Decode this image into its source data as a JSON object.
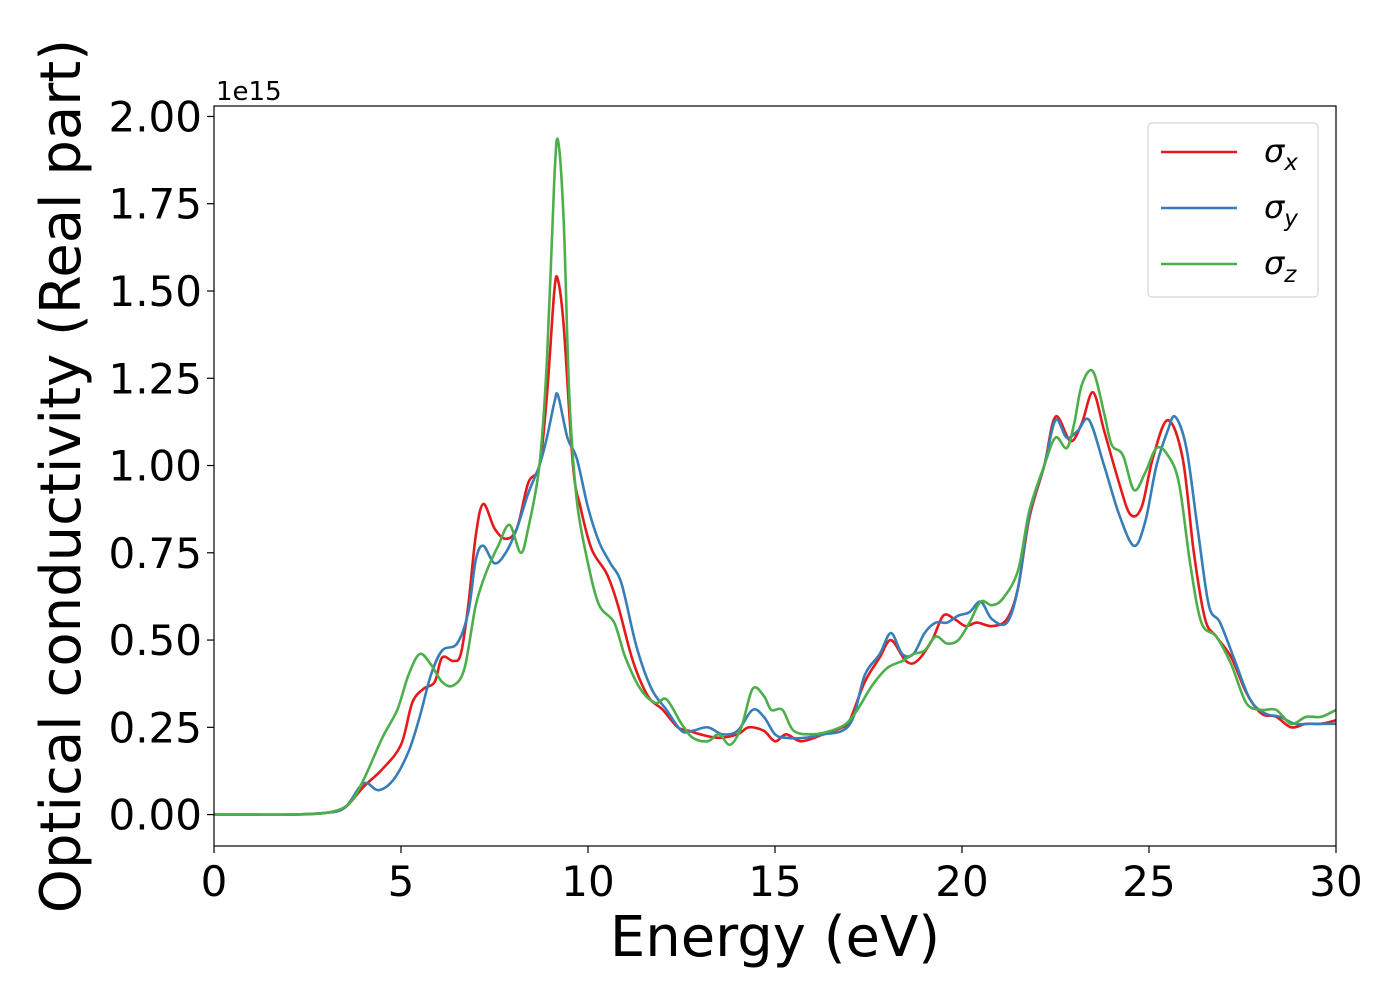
{
  "chart_data": {
    "type": "line",
    "xlabel": "Energy (eV)",
    "ylabel": "Optical conductivity (Real part)",
    "y_offset_label": "1e15",
    "xlim": [
      0,
      30
    ],
    "ylim": [
      -0.09,
      2.03
    ],
    "x_ticks": [
      0,
      5,
      10,
      15,
      20,
      25,
      30
    ],
    "x_tick_labels": [
      "0",
      "5",
      "10",
      "15",
      "20",
      "25",
      "30"
    ],
    "y_ticks": [
      0.0,
      0.25,
      0.5,
      0.75,
      1.0,
      1.25,
      1.5,
      1.75,
      2.0
    ],
    "y_tick_labels": [
      "0.00",
      "0.25",
      "0.50",
      "0.75",
      "1.00",
      "1.25",
      "1.50",
      "1.75",
      "2.00"
    ],
    "grid": false,
    "legend_position": "top-right",
    "series": [
      {
        "name": "σx",
        "legend_base": "σ",
        "legend_sub": "x",
        "color": "#e41a1c",
        "points": [
          [
            0,
            0
          ],
          [
            1,
            0
          ],
          [
            2,
            0
          ],
          [
            3,
            0.005
          ],
          [
            3.5,
            0.02
          ],
          [
            4,
            0.08
          ],
          [
            4.5,
            0.13
          ],
          [
            5,
            0.2
          ],
          [
            5.3,
            0.32
          ],
          [
            5.6,
            0.36
          ],
          [
            5.9,
            0.38
          ],
          [
            6.1,
            0.45
          ],
          [
            6.4,
            0.44
          ],
          [
            6.6,
            0.46
          ],
          [
            6.8,
            0.6
          ],
          [
            7,
            0.8
          ],
          [
            7.2,
            0.89
          ],
          [
            7.5,
            0.82
          ],
          [
            7.8,
            0.79
          ],
          [
            8.1,
            0.82
          ],
          [
            8.4,
            0.95
          ],
          [
            8.7,
            1.0
          ],
          [
            8.9,
            1.2
          ],
          [
            9.1,
            1.5
          ],
          [
            9.2,
            1.53
          ],
          [
            9.35,
            1.4
          ],
          [
            9.6,
            1.0
          ],
          [
            9.8,
            0.88
          ],
          [
            10.1,
            0.76
          ],
          [
            10.5,
            0.69
          ],
          [
            10.8,
            0.6
          ],
          [
            11.2,
            0.44
          ],
          [
            11.6,
            0.34
          ],
          [
            12,
            0.3
          ],
          [
            12.4,
            0.25
          ],
          [
            12.7,
            0.24
          ],
          [
            13,
            0.23
          ],
          [
            13.5,
            0.22
          ],
          [
            14,
            0.23
          ],
          [
            14.3,
            0.25
          ],
          [
            14.7,
            0.24
          ],
          [
            15,
            0.21
          ],
          [
            15.3,
            0.23
          ],
          [
            15.7,
            0.21
          ],
          [
            16.3,
            0.23
          ],
          [
            16.8,
            0.25
          ],
          [
            17,
            0.27
          ],
          [
            17.4,
            0.38
          ],
          [
            17.8,
            0.45
          ],
          [
            18.1,
            0.5
          ],
          [
            18.5,
            0.44
          ],
          [
            18.8,
            0.44
          ],
          [
            19.2,
            0.5
          ],
          [
            19.5,
            0.57
          ],
          [
            19.8,
            0.56
          ],
          [
            20.1,
            0.54
          ],
          [
            20.4,
            0.55
          ],
          [
            20.8,
            0.54
          ],
          [
            21.2,
            0.56
          ],
          [
            21.5,
            0.65
          ],
          [
            21.8,
            0.85
          ],
          [
            22.2,
            1.0
          ],
          [
            22.5,
            1.14
          ],
          [
            22.9,
            1.07
          ],
          [
            23.2,
            1.12
          ],
          [
            23.5,
            1.21
          ],
          [
            23.8,
            1.1
          ],
          [
            24.2,
            0.95
          ],
          [
            24.5,
            0.86
          ],
          [
            24.8,
            0.88
          ],
          [
            25.1,
            1.02
          ],
          [
            25.5,
            1.13
          ],
          [
            25.9,
            1.02
          ],
          [
            26.2,
            0.75
          ],
          [
            26.5,
            0.56
          ],
          [
            26.8,
            0.51
          ],
          [
            27.2,
            0.45
          ],
          [
            27.6,
            0.35
          ],
          [
            28,
            0.29
          ],
          [
            28.4,
            0.28
          ],
          [
            28.8,
            0.25
          ],
          [
            29.2,
            0.26
          ],
          [
            29.6,
            0.26
          ],
          [
            30,
            0.27
          ]
        ]
      },
      {
        "name": "σy",
        "legend_base": "σ",
        "legend_sub": "y",
        "color": "#377eb8",
        "points": [
          [
            0,
            0
          ],
          [
            1,
            0
          ],
          [
            2,
            0
          ],
          [
            3,
            0.005
          ],
          [
            3.5,
            0.02
          ],
          [
            3.9,
            0.08
          ],
          [
            4.1,
            0.09
          ],
          [
            4.4,
            0.07
          ],
          [
            4.8,
            0.1
          ],
          [
            5.2,
            0.18
          ],
          [
            5.5,
            0.28
          ],
          [
            5.8,
            0.4
          ],
          [
            6.1,
            0.47
          ],
          [
            6.5,
            0.49
          ],
          [
            6.8,
            0.58
          ],
          [
            7,
            0.73
          ],
          [
            7.2,
            0.77
          ],
          [
            7.5,
            0.72
          ],
          [
            7.8,
            0.75
          ],
          [
            8.1,
            0.82
          ],
          [
            8.4,
            0.92
          ],
          [
            8.7,
            1.0
          ],
          [
            8.9,
            1.08
          ],
          [
            9.1,
            1.18
          ],
          [
            9.2,
            1.2
          ],
          [
            9.45,
            1.08
          ],
          [
            9.7,
            1.02
          ],
          [
            10,
            0.88
          ],
          [
            10.3,
            0.78
          ],
          [
            10.6,
            0.72
          ],
          [
            10.9,
            0.66
          ],
          [
            11.3,
            0.48
          ],
          [
            11.7,
            0.36
          ],
          [
            12.1,
            0.3
          ],
          [
            12.5,
            0.24
          ],
          [
            12.8,
            0.24
          ],
          [
            13.2,
            0.25
          ],
          [
            13.6,
            0.23
          ],
          [
            14,
            0.24
          ],
          [
            14.4,
            0.3
          ],
          [
            14.7,
            0.28
          ],
          [
            15,
            0.23
          ],
          [
            15.3,
            0.22
          ],
          [
            15.8,
            0.22
          ],
          [
            16.3,
            0.23
          ],
          [
            16.8,
            0.24
          ],
          [
            17.1,
            0.28
          ],
          [
            17.4,
            0.4
          ],
          [
            17.8,
            0.46
          ],
          [
            18.1,
            0.52
          ],
          [
            18.4,
            0.46
          ],
          [
            18.7,
            0.46
          ],
          [
            19,
            0.52
          ],
          [
            19.3,
            0.55
          ],
          [
            19.6,
            0.55
          ],
          [
            19.9,
            0.57
          ],
          [
            20.2,
            0.58
          ],
          [
            20.5,
            0.61
          ],
          [
            20.8,
            0.56
          ],
          [
            21.2,
            0.55
          ],
          [
            21.5,
            0.65
          ],
          [
            21.8,
            0.86
          ],
          [
            22.2,
            1.0
          ],
          [
            22.5,
            1.13
          ],
          [
            22.8,
            1.08
          ],
          [
            23.1,
            1.1
          ],
          [
            23.4,
            1.13
          ],
          [
            23.8,
            1.0
          ],
          [
            24.2,
            0.86
          ],
          [
            24.6,
            0.77
          ],
          [
            24.9,
            0.84
          ],
          [
            25.2,
            1.0
          ],
          [
            25.5,
            1.1
          ],
          [
            25.7,
            1.14
          ],
          [
            26,
            1.05
          ],
          [
            26.3,
            0.82
          ],
          [
            26.6,
            0.6
          ],
          [
            26.9,
            0.55
          ],
          [
            27.3,
            0.44
          ],
          [
            27.7,
            0.33
          ],
          [
            28.1,
            0.29
          ],
          [
            28.5,
            0.28
          ],
          [
            28.9,
            0.26
          ],
          [
            29.3,
            0.26
          ],
          [
            29.7,
            0.26
          ],
          [
            30,
            0.26
          ]
        ]
      },
      {
        "name": "σz",
        "legend_base": "σ",
        "legend_sub": "z",
        "color": "#4daf4a",
        "points": [
          [
            0,
            0
          ],
          [
            1,
            0
          ],
          [
            2,
            0
          ],
          [
            3,
            0.005
          ],
          [
            3.6,
            0.03
          ],
          [
            4,
            0.1
          ],
          [
            4.5,
            0.22
          ],
          [
            4.9,
            0.3
          ],
          [
            5.2,
            0.4
          ],
          [
            5.5,
            0.46
          ],
          [
            5.8,
            0.43
          ],
          [
            6.1,
            0.38
          ],
          [
            6.4,
            0.37
          ],
          [
            6.7,
            0.42
          ],
          [
            7,
            0.6
          ],
          [
            7.3,
            0.7
          ],
          [
            7.6,
            0.77
          ],
          [
            7.9,
            0.83
          ],
          [
            8.2,
            0.75
          ],
          [
            8.4,
            0.82
          ],
          [
            8.7,
            1.0
          ],
          [
            8.9,
            1.3
          ],
          [
            9.1,
            1.82
          ],
          [
            9.2,
            1.93
          ],
          [
            9.35,
            1.7
          ],
          [
            9.5,
            1.2
          ],
          [
            9.7,
            0.9
          ],
          [
            10,
            0.72
          ],
          [
            10.3,
            0.6
          ],
          [
            10.7,
            0.55
          ],
          [
            11,
            0.45
          ],
          [
            11.4,
            0.36
          ],
          [
            11.8,
            0.32
          ],
          [
            12.1,
            0.33
          ],
          [
            12.5,
            0.26
          ],
          [
            12.8,
            0.22
          ],
          [
            13.2,
            0.21
          ],
          [
            13.5,
            0.23
          ],
          [
            13.8,
            0.2
          ],
          [
            14.1,
            0.25
          ],
          [
            14.4,
            0.36
          ],
          [
            14.7,
            0.34
          ],
          [
            14.9,
            0.3
          ],
          [
            15.2,
            0.3
          ],
          [
            15.5,
            0.24
          ],
          [
            16,
            0.23
          ],
          [
            16.5,
            0.24
          ],
          [
            16.9,
            0.26
          ],
          [
            17.2,
            0.3
          ],
          [
            17.6,
            0.37
          ],
          [
            18,
            0.42
          ],
          [
            18.4,
            0.44
          ],
          [
            18.7,
            0.46
          ],
          [
            19,
            0.47
          ],
          [
            19.3,
            0.51
          ],
          [
            19.6,
            0.49
          ],
          [
            19.9,
            0.5
          ],
          [
            20.2,
            0.55
          ],
          [
            20.5,
            0.61
          ],
          [
            20.8,
            0.6
          ],
          [
            21.1,
            0.62
          ],
          [
            21.5,
            0.7
          ],
          [
            21.8,
            0.87
          ],
          [
            22.2,
            1.0
          ],
          [
            22.5,
            1.08
          ],
          [
            22.8,
            1.05
          ],
          [
            23,
            1.12
          ],
          [
            23.2,
            1.23
          ],
          [
            23.5,
            1.27
          ],
          [
            23.8,
            1.15
          ],
          [
            24,
            1.06
          ],
          [
            24.3,
            1.03
          ],
          [
            24.6,
            0.93
          ],
          [
            24.9,
            0.98
          ],
          [
            25.2,
            1.05
          ],
          [
            25.5,
            1.03
          ],
          [
            25.8,
            0.95
          ],
          [
            26.1,
            0.72
          ],
          [
            26.4,
            0.55
          ],
          [
            26.8,
            0.51
          ],
          [
            27.2,
            0.43
          ],
          [
            27.6,
            0.32
          ],
          [
            28,
            0.3
          ],
          [
            28.4,
            0.3
          ],
          [
            28.8,
            0.26
          ],
          [
            29.2,
            0.28
          ],
          [
            29.6,
            0.28
          ],
          [
            30,
            0.3
          ]
        ]
      }
    ]
  }
}
